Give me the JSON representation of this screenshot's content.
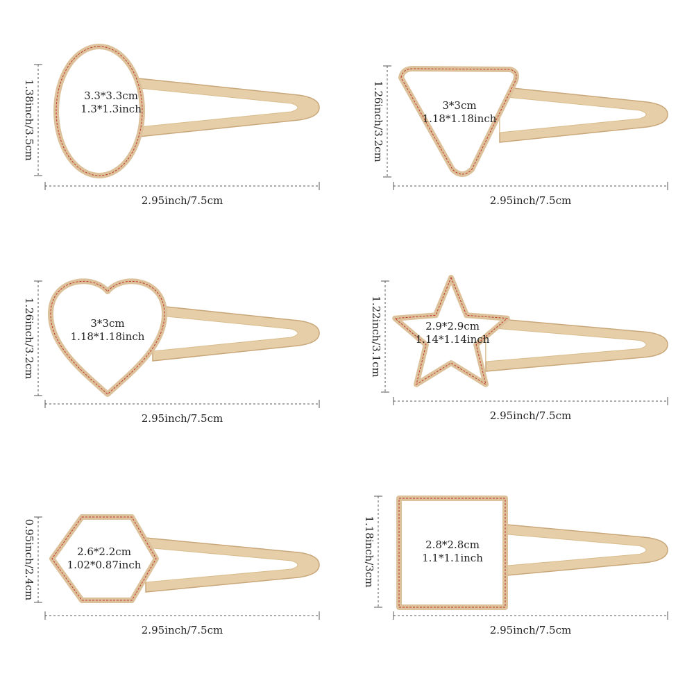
{
  "items": [
    {
      "size_cm": "3.3*3.3cm",
      "size_inch": "1.3*1.3inch",
      "height": "1.38inch/3.5cm",
      "width": "2.95inch/7.5cm"
    },
    {
      "size_cm": "3*3cm",
      "size_inch": "1.18*1.18inch",
      "height": "1.26inch/3.2cm",
      "width": "2.95inch/7.5cm"
    },
    {
      "size_cm": "3*3cm",
      "size_inch": "1.18*1.18inch",
      "height": "1.26inch/3.2cm",
      "width": "2.95inch/7.5cm"
    },
    {
      "size_cm": "2.9*2.9cm",
      "size_inch": "1.14*1.14inch",
      "height": "1.22inch/3.1cm",
      "width": "2.95inch/7.5cm"
    },
    {
      "size_cm": "2.6*2.2cm",
      "size_inch": "1.02*0.87inch",
      "height": "0.95inch/2.4cm",
      "width": "2.95inch/7.5cm"
    },
    {
      "size_cm": "2.8*2.8cm",
      "size_inch": "1.1*1.1inch",
      "height": "1.18inch/3cm",
      "width": "2.95inch/7.5cm"
    }
  ]
}
